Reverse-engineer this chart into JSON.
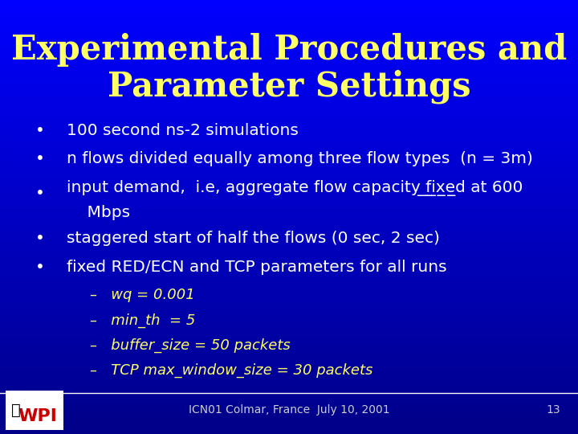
{
  "title_line1": "Experimental Procedures and",
  "title_line2": "Parameter Settings",
  "title_color": "#FFFF66",
  "background_color": "#1a1aff",
  "background_color2": "#000080",
  "bullet_color": "#ffffff",
  "bullet_items": [
    "100 second ns-2 simulations",
    "n flows divided equally among three flow types  (n = 3m)",
    "input demand,  i.e, aggregate flow capacity fixed at 600\n    Mbps",
    "staggered start of half the flows (0 sec, 2 sec)",
    "fixed RED/ECN and TCP parameters for all runs"
  ],
  "sub_items": [
    "–   wq = 0.001",
    "–   min_th  = 5",
    "–   buffer_size = 50 packets",
    "–   TCP max_window_size = 30 packets"
  ],
  "footer_text": "ICN01 Colmar, France  July 10, 2001",
  "footer_page": "13",
  "footer_color": "#cccccc",
  "underline_word": "fixed",
  "bullet_fontsize": 14.5,
  "sub_fontsize": 13,
  "title_fontsize1": 30,
  "title_fontsize2": 30
}
